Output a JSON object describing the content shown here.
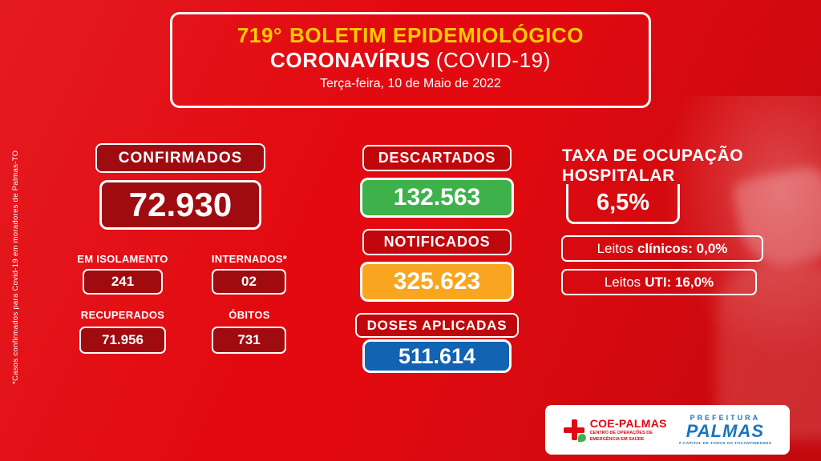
{
  "colors": {
    "background_red": "#e20a10",
    "dark_red_box": "#a00b10",
    "green_box": "#3eb14b",
    "orange_box": "#f9a51f",
    "blue_box": "#1263b2",
    "title_yellow": "#ffcc00",
    "logo_red": "#e30613",
    "logo_blue": "#1b75bb",
    "white": "#ffffff"
  },
  "header": {
    "edition": "719°",
    "title": "BOLETIM EPIDEMIOLÓGICO",
    "subtitle": "CORONAVÍRUS",
    "subtitle_paren": "(COVID-19)",
    "date": "Terça-feira, 10 de Maio de 2022"
  },
  "confirmados": {
    "label": "CONFIRMADOS",
    "value": "72.930",
    "isolamento": {
      "label": "EM ISOLAMENTO",
      "value": "241"
    },
    "internados": {
      "label": "INTERNADOS*",
      "value": "02"
    },
    "recuperados": {
      "label": "RECUPERADOS",
      "value": "71.956"
    },
    "obitos": {
      "label": "ÓBITOS",
      "value": "731"
    }
  },
  "descartados": {
    "label": "DESCARTADOS",
    "value": "132.563"
  },
  "notificados": {
    "label": "NOTIFICADOS",
    "value": "325.623"
  },
  "doses": {
    "label": "DOSES APLICADAS",
    "value": "511.614"
  },
  "ocupacao": {
    "title_line1": "TAXA DE OCUPAÇÃO",
    "title_line2": "HOSPITALAR",
    "taxa": "6,5%",
    "leitos_clinicos_prefix": "Leitos",
    "leitos_clinicos_value": "clínicos: 0,0%",
    "leitos_uti_prefix": "Leitos",
    "leitos_uti_value": "UTI: 16,0%"
  },
  "footnote": "*Casos confirmados para Covid-19 em moradores de Palmas-TO",
  "footer": {
    "coe_title": "COE-PALMAS",
    "coe_subtitle": "CENTRO DE OPERAÇÕES DE EMERGÊNCIA EM SAÚDE",
    "prefeitura_label": "PREFEITURA",
    "city_name": "PALMAS",
    "city_tagline": "A CAPITAL DE TODOS OS TOCANTINENSES"
  }
}
